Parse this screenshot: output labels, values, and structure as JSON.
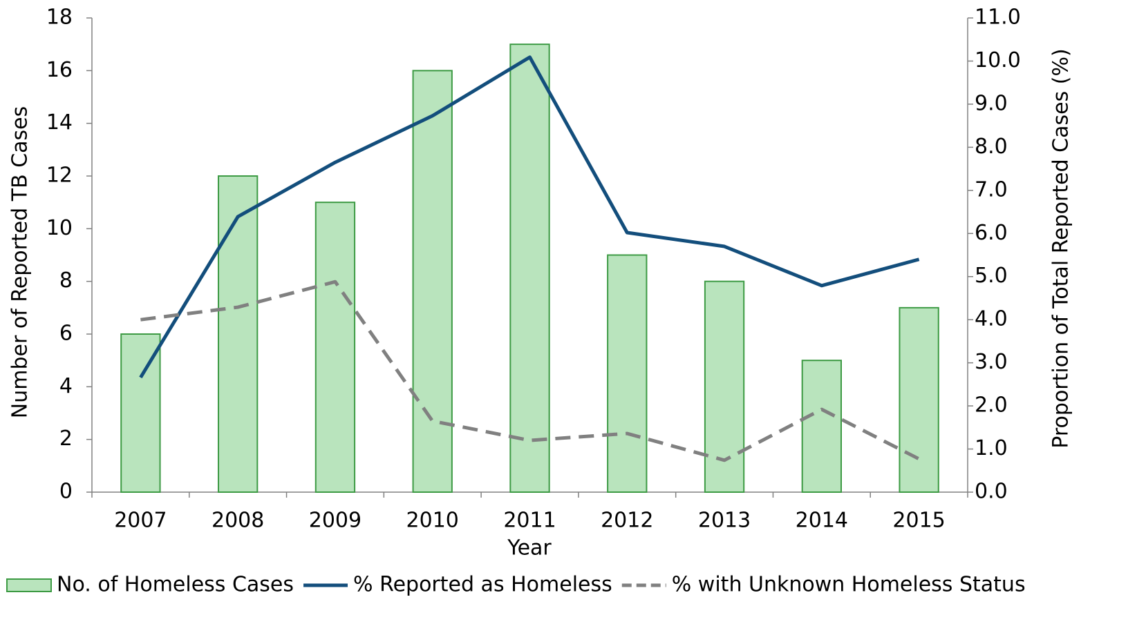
{
  "chart_data": {
    "type": "bar",
    "x_label": "Year",
    "y_label": "Number of Reported TB Cases",
    "y2_label": "Proportion of Total Reported Cases (%)",
    "categories": [
      "2007",
      "2008",
      "2009",
      "2010",
      "2011",
      "2012",
      "2013",
      "2014",
      "2015"
    ],
    "series": [
      {
        "name": "No. of Homeless Cases",
        "type": "bar",
        "color": "#b9e4bd",
        "edge_color": "#3c9a43",
        "values": [
          6,
          12,
          11,
          16,
          17,
          9,
          8,
          5,
          7
        ]
      },
      {
        "name": "% Reported as Homeless",
        "type": "line",
        "axis": "y2",
        "color": "#134e7c",
        "values": [
          2.66,
          6.39,
          7.65,
          8.73,
          10.09,
          6.02,
          5.7,
          4.79,
          5.4
        ]
      },
      {
        "name": "% with Unknown Homeless Status",
        "type": "line",
        "axis": "y2",
        "dashed": true,
        "color": "#808080",
        "values": [
          4.0,
          4.29,
          4.88,
          1.65,
          1.2,
          1.36,
          0.74,
          1.92,
          0.77
        ]
      }
    ],
    "ylim": [
      0,
      18
    ],
    "yticks": [
      0,
      2,
      4,
      6,
      8,
      10,
      12,
      14,
      16,
      18
    ],
    "y2lim": [
      0,
      11
    ],
    "y2ticks": [
      {
        "value": 0,
        "label": "0.0"
      },
      {
        "value": 1,
        "label": "1.0"
      },
      {
        "value": 2,
        "label": "2.0"
      },
      {
        "value": 3,
        "label": "3.0"
      },
      {
        "value": 4,
        "label": "4.0"
      },
      {
        "value": 5,
        "label": "5.0"
      },
      {
        "value": 6,
        "label": "6.0"
      },
      {
        "value": 7,
        "label": "7.0"
      },
      {
        "value": 8,
        "label": "8.0"
      },
      {
        "value": 9,
        "label": "9.0"
      },
      {
        "value": 10,
        "label": "10.0"
      },
      {
        "value": 11,
        "label": "11.0"
      }
    ],
    "legend": "bottom"
  }
}
